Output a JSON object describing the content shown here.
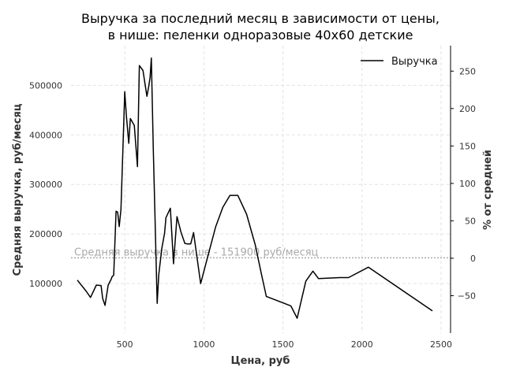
{
  "chart_data": {
    "type": "line",
    "title_line1": "Выручка за последний месяц в зависимости от цены,",
    "title_line2": "в нише: пеленки одноразовые 40x60 детские",
    "xlabel": "Цена, руб",
    "ylabel": "Средняя выручка, руб/месяц",
    "y2label": "% от средней",
    "xlim": [
      160,
      2560
    ],
    "ylim": [
      0,
      580000
    ],
    "y2lim": [
      -100,
      284
    ],
    "x_ticks": [
      500,
      1000,
      1500,
      2000,
      2500
    ],
    "y_ticks": [
      100000,
      200000,
      300000,
      400000,
      500000
    ],
    "y2_ticks": [
      -50,
      0,
      50,
      100,
      150,
      200,
      250
    ],
    "grid": true,
    "legend_position": "top-right",
    "average": {
      "value": 151900,
      "label": "Средняя выручка в нише - 151900 руб/месяц"
    },
    "series": [
      {
        "name": "Выручка",
        "color": "#000000",
        "x": [
          200,
          255,
          283,
          320,
          350,
          360,
          375,
          395,
          413,
          420,
          430,
          445,
          455,
          465,
          476,
          500,
          510,
          525,
          535,
          560,
          580,
          592,
          615,
          640,
          650,
          660,
          668,
          680,
          705,
          715,
          735,
          752,
          760,
          788,
          808,
          830,
          855,
          880,
          895,
          917,
          935,
          980,
          1020,
          1075,
          1120,
          1165,
          1215,
          1270,
          1325,
          1360,
          1395,
          1550,
          1590,
          1645,
          1690,
          1725,
          1860,
          1915,
          2040,
          2445
        ],
        "y": [
          107000,
          85000,
          72000,
          97000,
          96000,
          70000,
          56000,
          97000,
          108000,
          114000,
          117000,
          246000,
          244000,
          215000,
          250000,
          487000,
          440000,
          383000,
          433000,
          419000,
          336000,
          540000,
          530000,
          478000,
          495000,
          516000,
          555000,
          376000,
          60000,
          118000,
          172000,
          202000,
          233000,
          252000,
          140000,
          235000,
          204000,
          181000,
          180000,
          180000,
          203000,
          100000,
          149000,
          215000,
          254000,
          278000,
          278000,
          240000,
          178000,
          125000,
          74000,
          55000,
          30000,
          105000,
          125000,
          110000,
          112000,
          112000,
          133000,
          45000
        ]
      }
    ]
  }
}
